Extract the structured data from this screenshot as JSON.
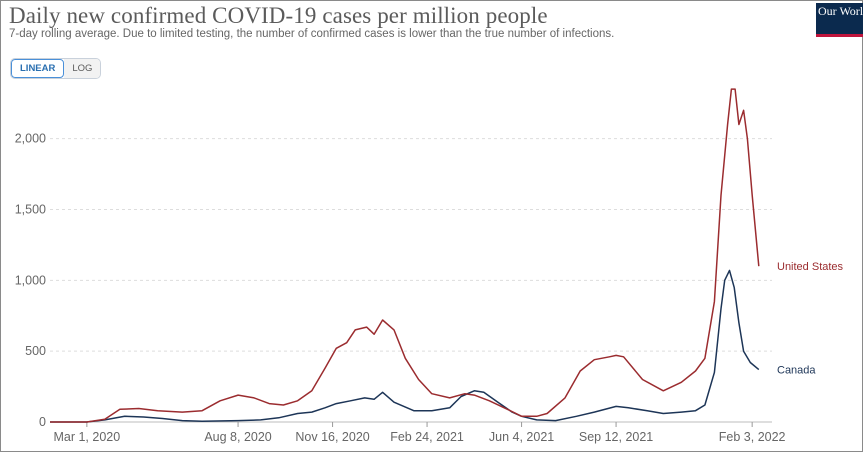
{
  "header": {
    "title": "Daily new confirmed COVID-19 cases per million people",
    "subtitle": "7-day rolling average. Due to limited testing, the number of confirmed cases is lower than the true number of infections.",
    "logo_text": "Our World in Data"
  },
  "controls": {
    "linear_label": "LINEAR",
    "log_label": "LOG",
    "selected": "LINEAR"
  },
  "colors": {
    "united_states": "#9b2c2f",
    "canada": "#1d3557",
    "grid": "#dddddd",
    "axis": "#666666"
  },
  "chart_data": {
    "type": "line",
    "title": "Daily new confirmed COVID-19 cases per million people",
    "subtitle": "7-day rolling average. Due to limited testing, the number of confirmed cases is lower than the true number of infections.",
    "x_tick_labels": [
      "Mar 1, 2020",
      "Aug 8, 2020",
      "Nov 16, 2020",
      "Feb 24, 2021",
      "Jun 4, 2021",
      "Sep 12, 2021",
      "Feb 3, 2022"
    ],
    "y_ticks": [
      0,
      500,
      1000,
      1500,
      2000
    ],
    "y_tick_labels": [
      "0",
      "500",
      "1,000",
      "1,500",
      "2,000"
    ],
    "ylim": [
      0,
      2400
    ],
    "xlim": [
      "2020-01-22",
      "2022-02-24"
    ],
    "grid": "horizontal dashed",
    "legend": "inline labels at line ends",
    "series": [
      {
        "name": "United States",
        "color": "#9b2c2f",
        "x": [
          "2020-01-22",
          "2020-03-01",
          "2020-03-20",
          "2020-04-05",
          "2020-04-25",
          "2020-05-15",
          "2020-06-10",
          "2020-07-01",
          "2020-07-20",
          "2020-08-08",
          "2020-08-25",
          "2020-09-10",
          "2020-09-25",
          "2020-10-10",
          "2020-10-25",
          "2020-11-08",
          "2020-11-20",
          "2020-12-01",
          "2020-12-10",
          "2020-12-22",
          "2020-12-30",
          "2021-01-08",
          "2021-01-20",
          "2021-02-01",
          "2021-02-15",
          "2021-03-01",
          "2021-03-20",
          "2021-04-05",
          "2021-04-15",
          "2021-05-01",
          "2021-05-20",
          "2021-06-04",
          "2021-06-20",
          "2021-07-01",
          "2021-07-20",
          "2021-08-05",
          "2021-08-20",
          "2021-09-05",
          "2021-09-12",
          "2021-09-20",
          "2021-10-10",
          "2021-11-01",
          "2021-11-20",
          "2021-12-05",
          "2021-12-15",
          "2021-12-25",
          "2022-01-01",
          "2022-01-08",
          "2022-01-12",
          "2022-01-16",
          "2022-01-20",
          "2022-01-25",
          "2022-01-29",
          "2022-02-03",
          "2022-02-10"
        ],
        "values": [
          0,
          0,
          20,
          90,
          95,
          80,
          70,
          80,
          150,
          190,
          170,
          130,
          120,
          150,
          220,
          380,
          520,
          560,
          650,
          670,
          620,
          720,
          650,
          450,
          300,
          200,
          170,
          200,
          190,
          150,
          90,
          40,
          40,
          60,
          170,
          360,
          440,
          460,
          470,
          460,
          300,
          220,
          280,
          360,
          450,
          850,
          1600,
          2100,
          2350,
          2350,
          2100,
          2200,
          2000,
          1600,
          1100
        ]
      },
      {
        "name": "Canada",
        "color": "#1d3557",
        "x": [
          "2020-01-22",
          "2020-03-01",
          "2020-03-20",
          "2020-04-10",
          "2020-04-30",
          "2020-05-20",
          "2020-06-10",
          "2020-07-01",
          "2020-08-08",
          "2020-09-01",
          "2020-09-20",
          "2020-10-10",
          "2020-10-25",
          "2020-11-08",
          "2020-11-20",
          "2020-12-05",
          "2020-12-20",
          "2020-12-30",
          "2021-01-08",
          "2021-01-20",
          "2021-02-10",
          "2021-03-01",
          "2021-03-20",
          "2021-04-01",
          "2021-04-15",
          "2021-04-25",
          "2021-05-10",
          "2021-05-25",
          "2021-06-04",
          "2021-06-20",
          "2021-07-10",
          "2021-08-01",
          "2021-08-20",
          "2021-09-12",
          "2021-09-25",
          "2021-10-15",
          "2021-11-01",
          "2021-11-20",
          "2021-12-05",
          "2021-12-15",
          "2021-12-25",
          "2022-01-01",
          "2022-01-05",
          "2022-01-10",
          "2022-01-15",
          "2022-01-20",
          "2022-01-25",
          "2022-02-01",
          "2022-02-10"
        ],
        "values": [
          0,
          0,
          15,
          40,
          35,
          25,
          10,
          5,
          10,
          15,
          30,
          60,
          70,
          100,
          130,
          150,
          170,
          160,
          210,
          140,
          80,
          80,
          100,
          180,
          220,
          210,
          140,
          70,
          40,
          15,
          10,
          40,
          70,
          110,
          100,
          80,
          60,
          70,
          80,
          120,
          350,
          800,
          1000,
          1070,
          950,
          700,
          500,
          420,
          370
        ]
      }
    ]
  }
}
